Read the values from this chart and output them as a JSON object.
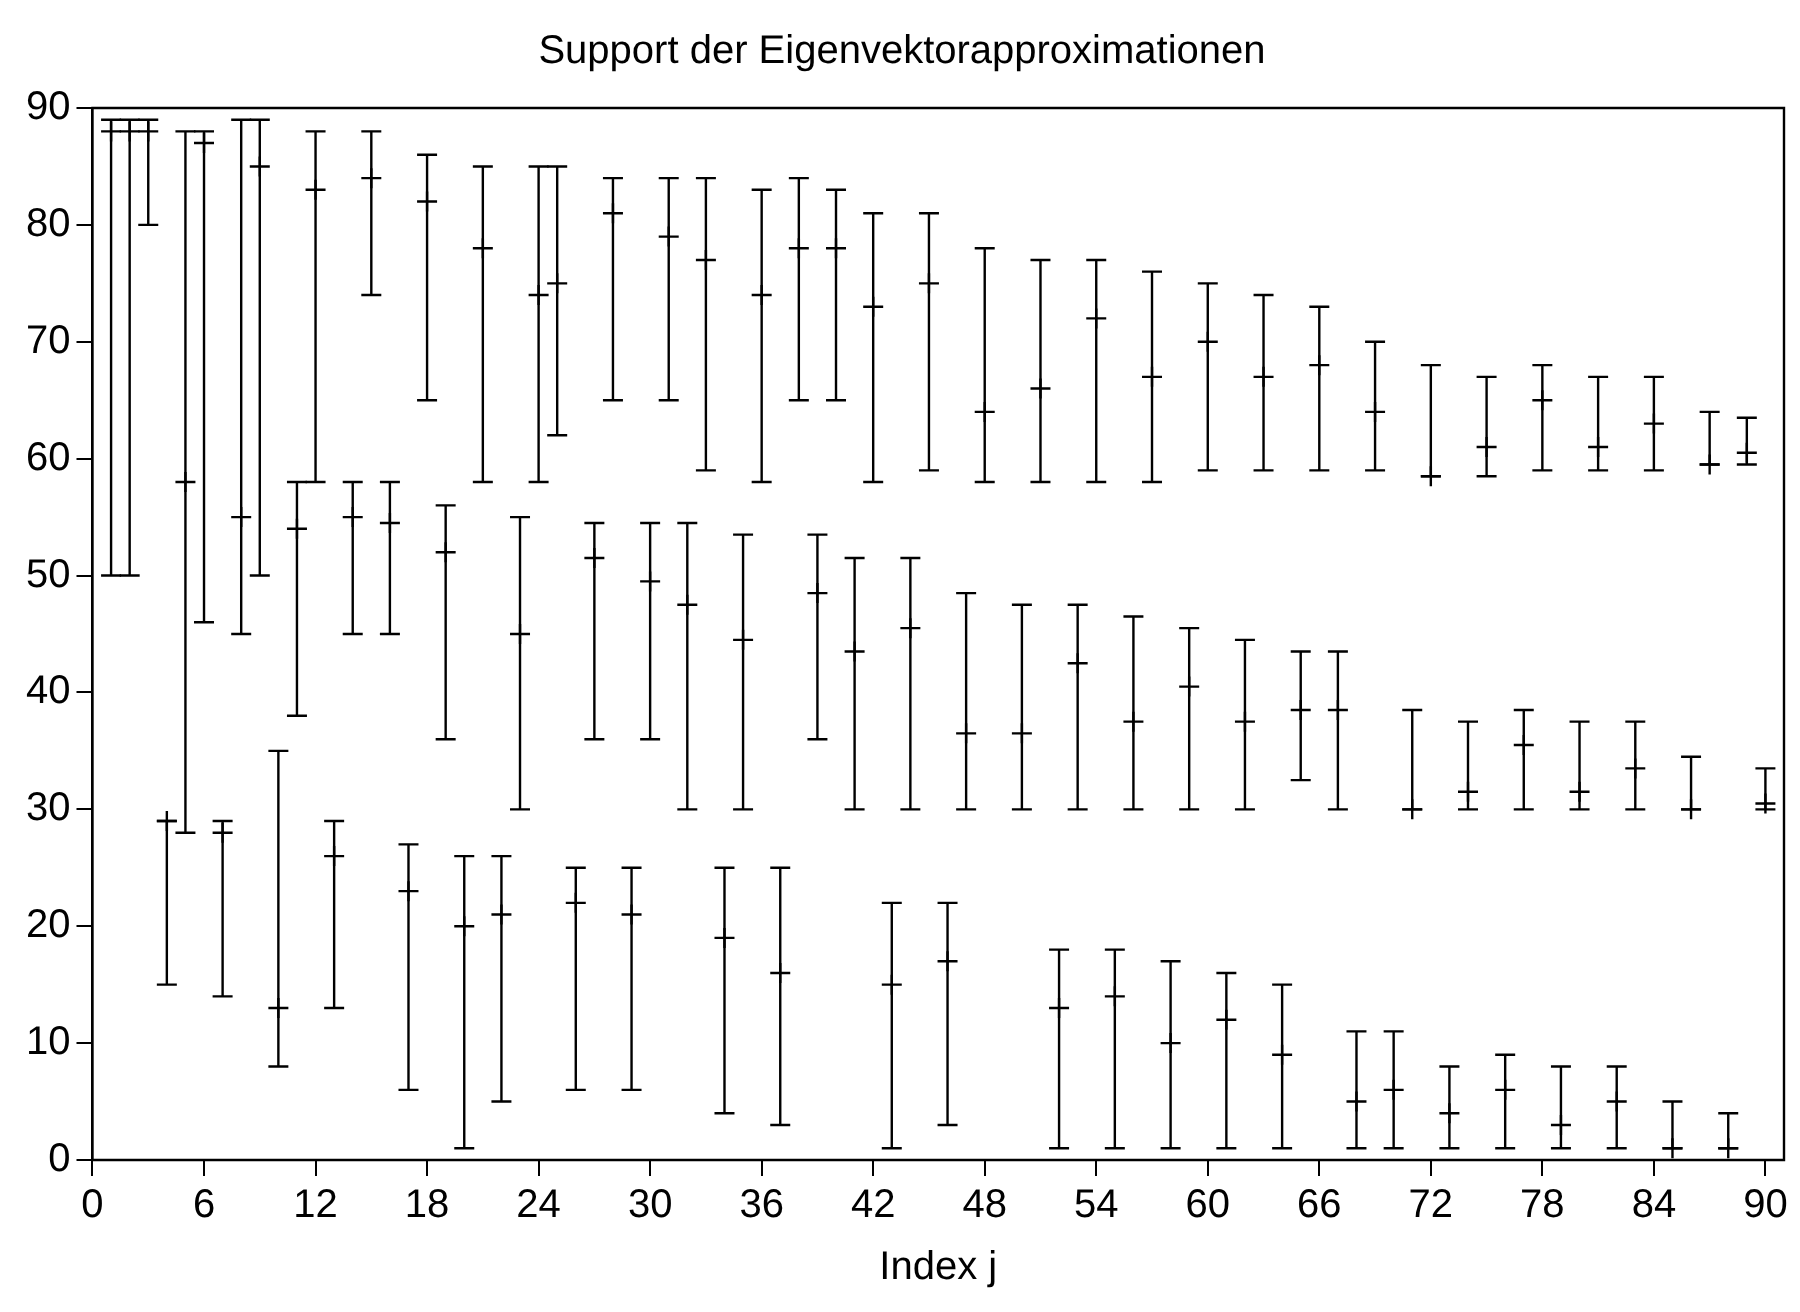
{
  "chart_data": {
    "type": "scatter",
    "title": "Support der Eigenvektorapproximationen",
    "xlabel": "Index j",
    "xlim": [
      0,
      91
    ],
    "xticks": [
      0,
      6,
      12,
      18,
      24,
      30,
      36,
      42,
      48,
      54,
      60,
      66,
      72,
      78,
      84,
      90
    ],
    "ylim": [
      0,
      90
    ],
    "yticks": [
      0,
      10,
      20,
      30,
      40,
      50,
      60,
      70,
      80,
      90
    ],
    "grid": false,
    "legend": false,
    "marker": "cross",
    "series": [
      {
        "color": "#000000",
        "x": [
          1,
          2,
          3,
          4,
          5,
          6,
          7,
          8,
          9,
          10,
          11,
          12,
          13,
          14,
          15,
          16,
          17,
          18,
          19,
          20,
          21,
          22,
          23,
          24,
          25,
          26,
          27,
          28,
          29,
          30,
          31,
          32,
          33,
          34,
          35,
          36,
          37,
          38,
          39,
          40,
          41,
          42,
          43,
          44,
          45,
          46,
          47,
          48,
          50,
          51,
          52,
          53,
          54,
          55,
          56,
          57,
          58,
          59,
          60,
          61,
          62,
          63,
          64,
          65,
          66,
          67,
          68,
          69,
          70,
          71,
          72,
          73,
          74,
          75,
          76,
          77,
          78,
          79,
          80,
          81,
          82,
          83,
          84,
          85,
          86,
          87,
          88,
          89,
          90
        ],
        "values": [
          88,
          88,
          88,
          29,
          58,
          87,
          28,
          55,
          85,
          13,
          54,
          83,
          26,
          55,
          84,
          54.5,
          23,
          82,
          52,
          20,
          78,
          21,
          45,
          74,
          75,
          22,
          51.5,
          81,
          21,
          49.5,
          79,
          47.5,
          77,
          19,
          44.5,
          74,
          16,
          78,
          48.5,
          78,
          43.5,
          73,
          15,
          45.5,
          75,
          17,
          36.5,
          64,
          36.5,
          66,
          13,
          42.5,
          72,
          14,
          37.5,
          67,
          10,
          40.5,
          70,
          12,
          37.5,
          67,
          9,
          38.5,
          68,
          38.5,
          5,
          64,
          6,
          30,
          58.5,
          4,
          31.5,
          61,
          6,
          35.5,
          65,
          3,
          31.5,
          61,
          5,
          33.5,
          63,
          1,
          30,
          59.5,
          1,
          60.5,
          30.5
        ],
        "errors": [
          [
            50,
            89
          ],
          [
            50,
            89
          ],
          [
            80,
            89
          ],
          [
            15,
            29
          ],
          [
            28,
            88
          ],
          [
            46,
            88
          ],
          [
            14,
            29
          ],
          [
            45,
            89
          ],
          [
            50,
            89
          ],
          [
            8,
            35
          ],
          [
            38,
            58
          ],
          [
            58,
            88
          ],
          [
            13,
            29
          ],
          [
            45,
            58
          ],
          [
            74,
            88
          ],
          [
            45,
            58
          ],
          [
            6,
            27
          ],
          [
            65,
            86
          ],
          [
            36,
            56
          ],
          [
            1,
            26
          ],
          [
            58,
            85
          ],
          [
            5,
            26
          ],
          [
            30,
            55
          ],
          [
            58,
            85
          ],
          [
            62,
            85
          ],
          [
            6,
            25
          ],
          [
            36,
            54.5
          ],
          [
            65,
            84
          ],
          [
            6,
            25
          ],
          [
            36,
            54.5
          ],
          [
            65,
            84
          ],
          [
            30,
            54.5
          ],
          [
            59,
            84
          ],
          [
            4,
            25
          ],
          [
            30,
            53.5
          ],
          [
            58,
            83
          ],
          [
            3,
            25
          ],
          [
            65,
            84
          ],
          [
            36,
            53.5
          ],
          [
            65,
            83
          ],
          [
            30,
            51.5
          ],
          [
            58,
            81
          ],
          [
            1,
            22
          ],
          [
            30,
            51.5
          ],
          [
            59,
            81
          ],
          [
            3,
            22
          ],
          [
            30,
            48.5
          ],
          [
            58,
            78
          ],
          [
            30,
            47.5
          ],
          [
            58,
            77
          ],
          [
            1,
            18
          ],
          [
            30,
            47.5
          ],
          [
            58,
            77
          ],
          [
            1,
            18
          ],
          [
            30,
            46.5
          ],
          [
            58,
            76
          ],
          [
            1,
            17
          ],
          [
            30,
            45.5
          ],
          [
            59,
            75
          ],
          [
            1,
            16
          ],
          [
            30,
            44.5
          ],
          [
            59,
            74
          ],
          [
            1,
            15
          ],
          [
            32.5,
            43.5
          ],
          [
            59,
            73
          ],
          [
            30,
            43.5
          ],
          [
            1,
            11
          ],
          [
            59,
            70
          ],
          [
            1,
            11
          ],
          [
            30,
            38.5
          ],
          [
            58.5,
            68
          ],
          [
            1,
            8
          ],
          [
            30,
            37.5
          ],
          [
            58.5,
            67
          ],
          [
            1,
            9
          ],
          [
            30,
            38.5
          ],
          [
            59,
            68
          ],
          [
            1,
            8
          ],
          [
            30,
            37.5
          ],
          [
            59,
            67
          ],
          [
            1,
            8
          ],
          [
            30,
            37.5
          ],
          [
            59,
            67
          ],
          [
            1,
            5
          ],
          [
            30,
            34.5
          ],
          [
            59.5,
            64
          ],
          [
            1,
            4
          ],
          [
            59.5,
            63.5
          ],
          [
            30,
            33.5
          ]
        ]
      }
    ]
  }
}
